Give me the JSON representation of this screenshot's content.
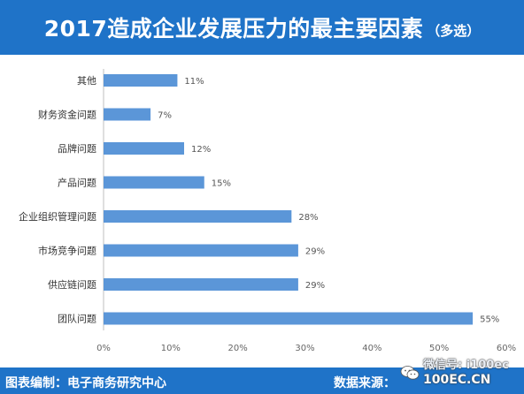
{
  "header": {
    "title": "2017造成企业发展压力的最主要因素",
    "subtitle": "（多选）"
  },
  "footer": {
    "left_label": "图表编制：",
    "left_value": "电子商务研究中心",
    "right_label": "数据来源：",
    "right_value": "100EC.CN"
  },
  "watermark": {
    "text": "微信号: i100ec",
    "icon": "wechat-icon"
  },
  "colors": {
    "header_bg": "#1f73c8",
    "bar": "#5b96d8"
  },
  "chart_data": {
    "type": "bar",
    "orientation": "horizontal",
    "categories": [
      "其他",
      "财务资金问题",
      "品牌问题",
      "产品问题",
      "企业组织管理问题",
      "市场竞争问题",
      "供应链问题",
      "团队问题"
    ],
    "values": [
      11,
      7,
      12,
      15,
      28,
      29,
      29,
      55
    ],
    "value_labels": [
      "11%",
      "7%",
      "12%",
      "15%",
      "28%",
      "29%",
      "29%",
      "55%"
    ],
    "xlim": [
      0,
      60
    ],
    "xticks": [
      "0%",
      "10%",
      "20%",
      "30%",
      "40%",
      "50%",
      "60%"
    ],
    "grid": false,
    "legend": "none"
  }
}
